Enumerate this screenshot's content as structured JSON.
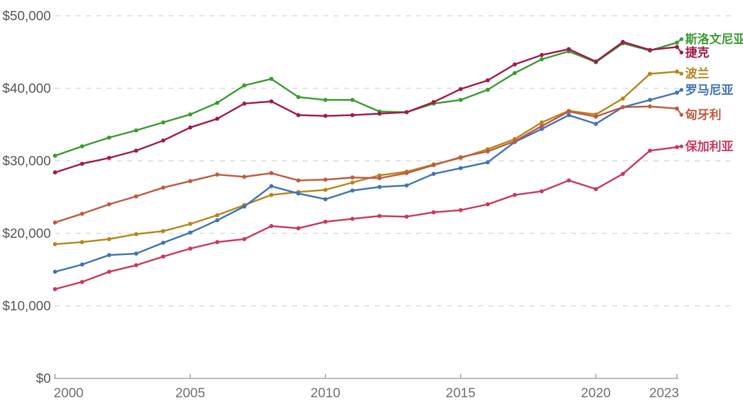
{
  "chart_data": {
    "type": "line",
    "title": "",
    "xlabel": "",
    "ylabel": "",
    "grid": "horizontal-dashed",
    "legend_position": "right-end-labels",
    "background_color": "#ffffff",
    "grid_color": "#d9d9d9",
    "axis_line_color": "#a3a3a3",
    "y_tick_color": "#565656",
    "x_tick_color": "#6e6e6e",
    "ylim": [
      0,
      50000
    ],
    "years": [
      2000,
      2001,
      2002,
      2003,
      2004,
      2005,
      2006,
      2007,
      2008,
      2009,
      2010,
      2011,
      2012,
      2013,
      2014,
      2015,
      2016,
      2017,
      2018,
      2019,
      2020,
      2021,
      2022,
      2023
    ],
    "y_axis_ticks": [
      {
        "value": 0,
        "label": "$0"
      },
      {
        "value": 10000,
        "label": "$10,000"
      },
      {
        "value": 20000,
        "label": "$20,000"
      },
      {
        "value": 30000,
        "label": "$30,000"
      },
      {
        "value": 40000,
        "label": "$40,000"
      },
      {
        "value": 50000,
        "label": "$50,000"
      }
    ],
    "x_axis_ticks": [
      {
        "value": 2000,
        "label": "2000"
      },
      {
        "value": 2005,
        "label": "2005"
      },
      {
        "value": 2010,
        "label": "2010"
      },
      {
        "value": 2015,
        "label": "2015"
      },
      {
        "value": 2020,
        "label": "2020"
      },
      {
        "value": 2023,
        "label": "2023"
      }
    ],
    "series": [
      {
        "id": "slovenia",
        "name": "斯洛文尼亚",
        "color": "#3B9B33",
        "values": [
          30700,
          32000,
          33200,
          34200,
          35300,
          36400,
          38000,
          40400,
          41300,
          38800,
          38400,
          38400,
          36800,
          36700,
          37900,
          38400,
          39800,
          42100,
          44000,
          45100,
          43600,
          46200,
          45200,
          46300
        ]
      },
      {
        "id": "czechia",
        "name": "捷克",
        "color": "#A01A4C",
        "values": [
          28400,
          29600,
          30400,
          31400,
          32800,
          34600,
          35800,
          37900,
          38200,
          36300,
          36200,
          36300,
          36500,
          36700,
          38100,
          39900,
          41100,
          43300,
          44600,
          45400,
          43700,
          46400,
          45300,
          45700
        ]
      },
      {
        "id": "poland",
        "name": "波兰",
        "color": "#B5861B",
        "values": [
          18500,
          18800,
          19200,
          19900,
          20300,
          21300,
          22500,
          23900,
          25300,
          25700,
          26000,
          27000,
          28000,
          28500,
          29500,
          30400,
          31600,
          33000,
          35300,
          36900,
          36400,
          38600,
          42000,
          42300
        ]
      },
      {
        "id": "romania",
        "name": "罗马尼亚",
        "color": "#3E74B4",
        "values": [
          14700,
          15700,
          17000,
          17200,
          18700,
          20100,
          21800,
          23700,
          26500,
          25500,
          24700,
          25900,
          26400,
          26600,
          28200,
          29000,
          29800,
          32600,
          34400,
          36300,
          35100,
          37400,
          38400,
          39400
        ]
      },
      {
        "id": "hungary",
        "name": "匈牙利",
        "color": "#BE5B40",
        "values": [
          21500,
          22700,
          24000,
          25100,
          26300,
          27200,
          28100,
          27800,
          28300,
          27300,
          27400,
          27700,
          27600,
          28300,
          29400,
          30500,
          31300,
          32700,
          34800,
          36800,
          36100,
          37400,
          37500,
          37200
        ]
      },
      {
        "id": "bulgaria",
        "name": "保加利亚",
        "color": "#C93A5C",
        "values": [
          12300,
          13300,
          14700,
          15600,
          16800,
          17900,
          18800,
          19200,
          21000,
          20700,
          21600,
          22000,
          22400,
          22300,
          22900,
          23200,
          24000,
          25300,
          25800,
          27300,
          26100,
          28200,
          31400,
          31900
        ]
      }
    ]
  }
}
